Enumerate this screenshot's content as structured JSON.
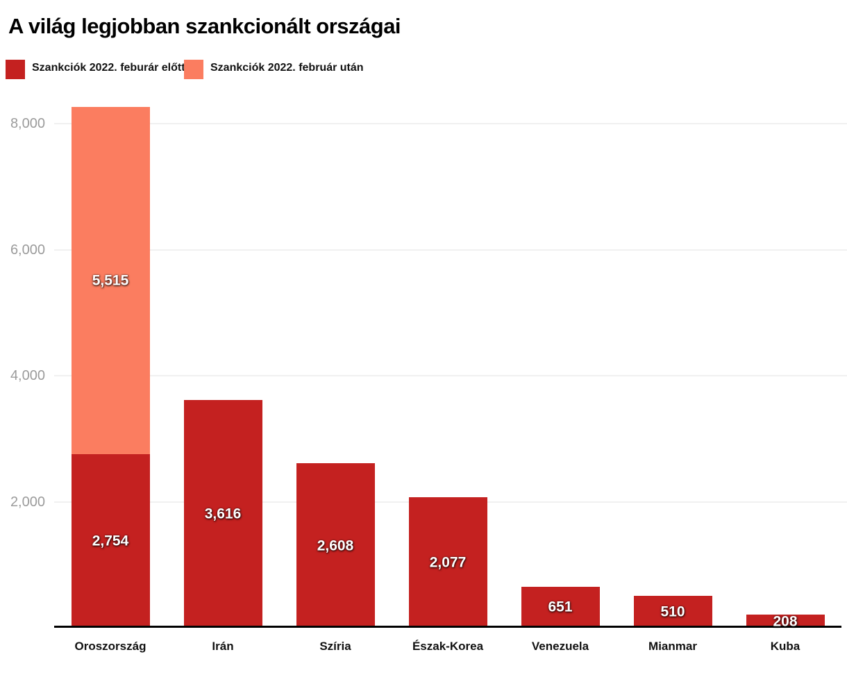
{
  "chart_data": {
    "type": "bar",
    "stacked": true,
    "title": "A világ legjobban szankcionált országai",
    "categories": [
      "Oroszország",
      "Irán",
      "Szíria",
      "Észak-Korea",
      "Venezuela",
      "Mianmar",
      "Kuba"
    ],
    "category_keys": [
      "oroszorszag",
      "iran",
      "sziria",
      "eszak-korea",
      "venezuela",
      "mianmar",
      "kuba"
    ],
    "series_keys": [
      "before",
      "after"
    ],
    "series": [
      {
        "name": "Szankciók 2022. feburár előtt",
        "color": "#c42120",
        "values": [
          2754,
          3616,
          2608,
          2077,
          651,
          510,
          208
        ]
      },
      {
        "name": "Szankciók 2022. február után",
        "color": "#fb7d60",
        "values": [
          5515,
          0,
          0,
          0,
          0,
          0,
          0
        ]
      }
    ],
    "totals": [
      8269,
      3616,
      2608,
      2077,
      651,
      510,
      208
    ],
    "y_ticks": [
      2000,
      4000,
      6000,
      8000
    ],
    "y_tick_labels": [
      "2,000",
      "4,000",
      "6,000",
      "8,000"
    ],
    "ylim": [
      0,
      8360
    ],
    "xlabel": "",
    "ylabel": "",
    "grid": true,
    "legend_position": "top-left",
    "colors": {
      "grid": "#e2e2e2",
      "axis": "#000000",
      "tick_text": "#9b9b9b",
      "value_label_text": "#ffffff",
      "title_text": "#000000"
    }
  }
}
